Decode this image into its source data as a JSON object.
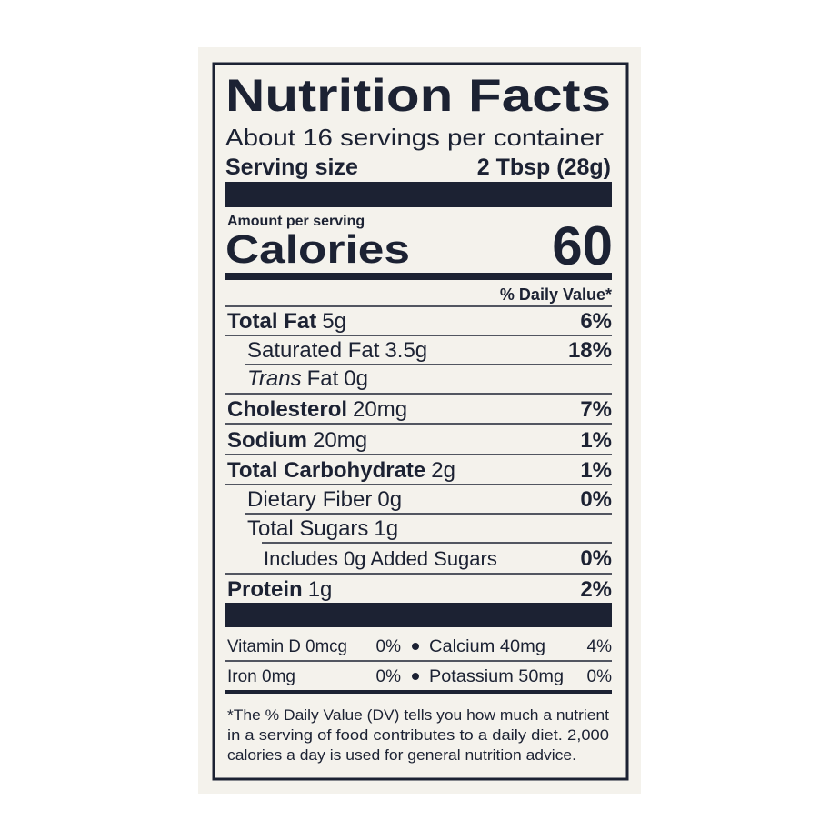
{
  "header": {
    "title": "Nutrition Facts",
    "servings": "About 16 servings per container",
    "serving_size_label": "Serving size",
    "serving_size": "2 Tbsp (28g)"
  },
  "calories": {
    "amount_label": "Amount per serving",
    "label": "Calories",
    "value": "60"
  },
  "dv_header": "% Daily Value*",
  "nutrients": [
    {
      "name": "Total Fat",
      "amount": "5g",
      "dv": "6%"
    },
    {
      "name": "Saturated Fat",
      "amount": "3.5g",
      "dv": "18%"
    },
    {
      "prefix": "Trans",
      "name": "Fat",
      "amount": "0g"
    },
    {
      "name": "Cholesterol",
      "amount": "20mg",
      "dv": "7%"
    },
    {
      "name": "Sodium",
      "amount": "20mg",
      "dv": "1%"
    },
    {
      "name": "Total Carbohydrate",
      "amount": "2g",
      "dv": "1%"
    },
    {
      "name": "Dietary Fiber",
      "amount": "0g",
      "dv": "0%"
    },
    {
      "name": "Total Sugars",
      "amount": "1g"
    },
    {
      "name": "Includes 0g Added Sugars",
      "dv": "0%"
    },
    {
      "name": "Protein",
      "amount": "1g",
      "dv": "2%"
    }
  ],
  "minerals": [
    [
      {
        "name": "Vitamin D 0mcg",
        "dv": "0%"
      },
      {
        "name": "Calcium 40mg",
        "dv": "4%"
      }
    ],
    [
      {
        "name": "Iron 0mg",
        "dv": "0%"
      },
      {
        "name": "Potassium 50mg",
        "dv": "0%"
      }
    ]
  ],
  "footnote": [
    "*The % Daily Value (DV) tells you how much a nutrient",
    "in a serving of food contributes to a daily diet. 2,000",
    "calories a day is used for general nutrition advice."
  ]
}
